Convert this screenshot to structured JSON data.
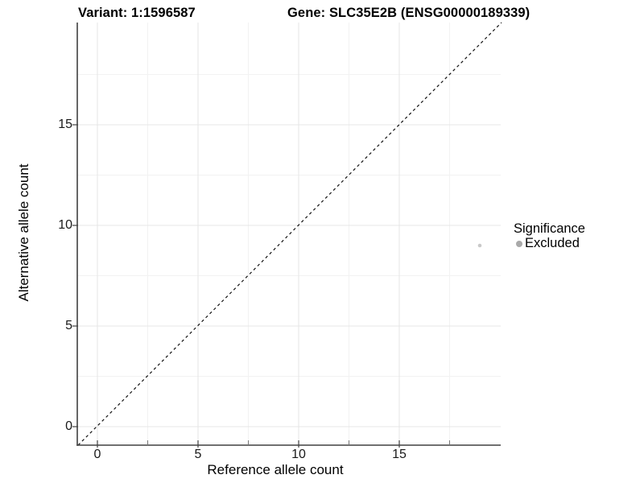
{
  "chart_data": {
    "type": "scatter",
    "title_variant": "Variant: 1:1596587",
    "title_gene": "Gene: SLC35E2B (ENSG00000189339)",
    "xlabel": "Reference allele count",
    "ylabel": "Alternative allele count",
    "x_ticks": [
      0,
      5,
      10,
      15
    ],
    "y_ticks": [
      0,
      5,
      10,
      15
    ],
    "x_minor_ticks": [
      2.5,
      7.5,
      12.5,
      17.5
    ],
    "y_minor_ticks": [
      2.5,
      7.5,
      12.5,
      17.5
    ],
    "xlim": [
      -1,
      20.1
    ],
    "ylim": [
      -0.9,
      20.1
    ],
    "grid": true,
    "legend_position": "right",
    "reference_line": {
      "kind": "identity y=x",
      "style": "dashed",
      "color": "#111111"
    },
    "points": [
      {
        "x": 19,
        "y": 9,
        "significance": "Excluded",
        "color": "#c9c9c9",
        "radius": 2.3
      }
    ],
    "legend": {
      "title": "Significance",
      "items": [
        {
          "label": "Excluded",
          "color": "#a9a9a9"
        }
      ]
    },
    "style": {
      "axis_line_color": "#404040",
      "grid_major_color": "#e7e7e7",
      "grid_minor_color": "#f2f2f2",
      "tick_color": "#404040",
      "minor_tick_color": "#777777",
      "point_color": "#c9c9c9",
      "legend_dot_color": "#a9a9a9"
    }
  }
}
